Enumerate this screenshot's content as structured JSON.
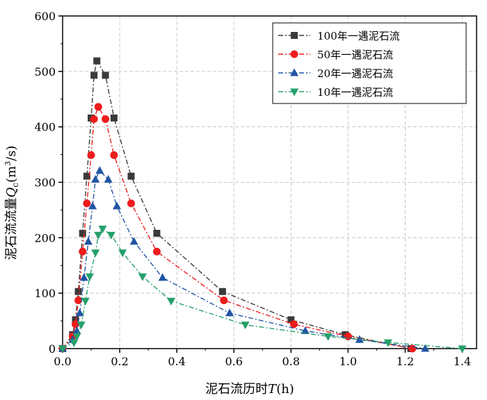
{
  "chart_data": {
    "type": "line",
    "xlabel_prefix": "泥石流历时",
    "xlabel_var": "T",
    "xlabel_unit": "(h)",
    "ylabel_prefix": "泥石流流量",
    "ylabel_var": "Q",
    "ylabel_sub": "c",
    "ylabel_unit_pre": "(m",
    "ylabel_unit_sup": "3",
    "ylabel_unit_post": "/s)",
    "xlim": [
      0.0,
      1.45
    ],
    "ylim": [
      0,
      600
    ],
    "xticks": [
      "0.0",
      "0.2",
      "0.4",
      "0.6",
      "0.8",
      "1.0",
      "1.2",
      "1.4"
    ],
    "yticks": [
      "0",
      "100",
      "200",
      "300",
      "400",
      "500",
      "600"
    ],
    "grid": true,
    "legend_position": "top-right",
    "series": [
      {
        "name": "100年一遇泥石流",
        "color": "#3a3a3a",
        "marker": "square",
        "x": [
          0.0,
          0.035,
          0.045,
          0.055,
          0.07,
          0.085,
          0.1,
          0.11,
          0.12,
          0.15,
          0.18,
          0.24,
          0.33,
          0.56,
          0.8,
          0.99,
          1.22
        ],
        "y": [
          0,
          25,
          52,
          103,
          208,
          311,
          416,
          493,
          519,
          493,
          416,
          311,
          208,
          103,
          52,
          25,
          0
        ]
      },
      {
        "name": "50年一遇泥石流",
        "color": "#ee1c1c",
        "marker": "circle",
        "x": [
          0.0,
          0.035,
          0.045,
          0.055,
          0.07,
          0.085,
          0.1,
          0.11,
          0.125,
          0.15,
          0.18,
          0.24,
          0.33,
          0.565,
          0.81,
          1.0,
          1.225
        ],
        "y": [
          0,
          22,
          44,
          87,
          175,
          262,
          349,
          414,
          436,
          414,
          349,
          262,
          175,
          87,
          44,
          22,
          0
        ]
      },
      {
        "name": "20年一遇泥石流",
        "color": "#2155a4",
        "marker": "triangle-up",
        "x": [
          0.0,
          0.035,
          0.05,
          0.06,
          0.075,
          0.09,
          0.105,
          0.115,
          0.13,
          0.16,
          0.19,
          0.25,
          0.35,
          0.585,
          0.85,
          1.04,
          1.27
        ],
        "y": [
          0,
          16,
          32,
          64,
          128,
          193,
          257,
          305,
          321,
          305,
          257,
          193,
          128,
          64,
          32,
          16,
          0
        ]
      },
      {
        "name": "10年一遇泥石流",
        "color": "#25a06a",
        "marker": "triangle-down",
        "x": [
          0.0,
          0.04,
          0.05,
          0.065,
          0.08,
          0.095,
          0.115,
          0.125,
          0.14,
          0.17,
          0.21,
          0.28,
          0.38,
          0.64,
          0.93,
          1.14,
          1.4
        ],
        "y": [
          0,
          11,
          22,
          43,
          86,
          130,
          173,
          205,
          216,
          205,
          173,
          130,
          86,
          43,
          22,
          11,
          0
        ]
      }
    ]
  }
}
